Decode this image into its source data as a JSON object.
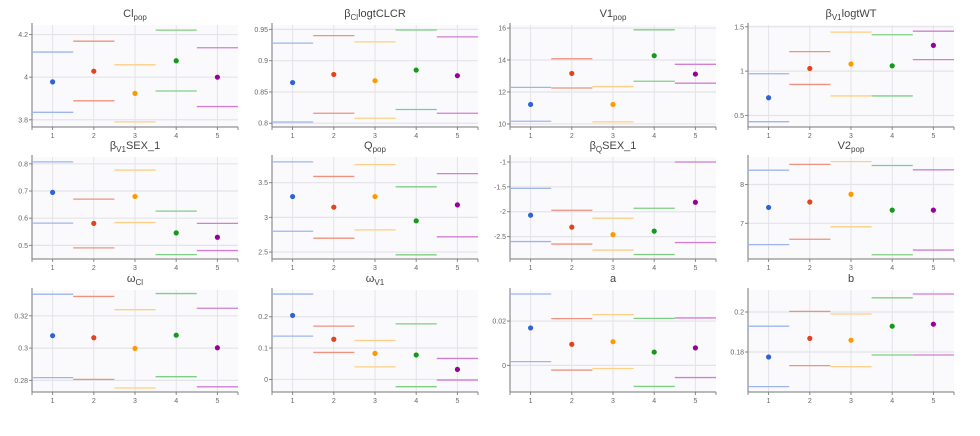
{
  "colors": [
    "#2f62d6",
    "#e2421e",
    "#ff9900",
    "#129a18",
    "#990099"
  ],
  "line_colors": [
    "#9db5ee",
    "#f0917f",
    "#ffcf85",
    "#7fcf82",
    "#d27ed2"
  ],
  "chart_data": [
    {
      "type": "scatter",
      "title": "Cl",
      "title_sub": "pop",
      "title_suffix": "",
      "x": [
        1,
        2,
        3,
        4,
        5
      ],
      "xlim": [
        0.5,
        5.5
      ],
      "ylim": [
        3.766,
        4.245
      ],
      "yticks": [
        3.8,
        4,
        4.2
      ],
      "ytick_labels": [
        "3.8",
        "4",
        "4.2"
      ],
      "values": [
        3.978,
        4.028,
        3.924,
        4.077,
        4.0
      ],
      "upper": [
        4.118,
        4.169,
        4.058,
        4.221,
        4.138
      ],
      "lower": [
        3.835,
        3.889,
        3.79,
        3.935,
        3.862
      ],
      "grid": true
    },
    {
      "type": "scatter",
      "title": "β",
      "title_sub": "Cl",
      "title_suffix": "logtCLCR",
      "x": [
        1,
        2,
        3,
        4,
        5
      ],
      "xlim": [
        0.5,
        5.5
      ],
      "ylim": [
        0.794,
        0.957
      ],
      "yticks": [
        0.8,
        0.85,
        0.9,
        0.95
      ],
      "ytick_labels": [
        "0.8",
        "0.85",
        "0.9",
        "0.95"
      ],
      "values": [
        0.865,
        0.878,
        0.868,
        0.885,
        0.876
      ],
      "upper": [
        0.928,
        0.94,
        0.93,
        0.949,
        0.938
      ],
      "lower": [
        0.802,
        0.816,
        0.808,
        0.822,
        0.816
      ],
      "grid": true
    },
    {
      "type": "scatter",
      "title": "V1",
      "title_sub": "pop",
      "title_suffix": "",
      "x": [
        1,
        2,
        3,
        4,
        5
      ],
      "xlim": [
        0.5,
        5.5
      ],
      "ylim": [
        9.81,
        16.19
      ],
      "yticks": [
        10,
        12,
        14,
        16
      ],
      "ytick_labels": [
        "10",
        "12",
        "14",
        "16"
      ],
      "values": [
        11.22,
        13.16,
        11.22,
        14.27,
        13.12
      ],
      "upper": [
        12.29,
        14.08,
        12.34,
        15.89,
        13.73
      ],
      "lower": [
        10.17,
        12.25,
        10.13,
        12.67,
        12.55
      ],
      "grid": true
    },
    {
      "type": "scatter",
      "title": "β",
      "title_sub": "V1",
      "title_suffix": "logtWT",
      "x": [
        1,
        2,
        3,
        4,
        5
      ],
      "xlim": [
        0.5,
        5.5
      ],
      "ylim": [
        0.37,
        1.52
      ],
      "yticks": [
        0.5,
        1,
        1.5
      ],
      "ytick_labels": [
        "0.5",
        "1",
        "1.5"
      ],
      "values": [
        0.7,
        1.03,
        1.08,
        1.06,
        1.29
      ],
      "upper": [
        0.97,
        1.22,
        1.44,
        1.41,
        1.45
      ],
      "lower": [
        0.43,
        0.85,
        0.72,
        0.72,
        1.13
      ],
      "grid": true
    },
    {
      "type": "scatter",
      "title": "β",
      "title_sub": "V1",
      "title_suffix": "SEX_1",
      "x": [
        1,
        2,
        3,
        4,
        5
      ],
      "xlim": [
        0.5,
        5.5
      ],
      "ylim": [
        0.45,
        0.825
      ],
      "yticks": [
        0.5,
        0.6,
        0.7,
        0.8
      ],
      "ytick_labels": [
        "0.5",
        "0.6",
        "0.7",
        "0.8"
      ],
      "values": [
        0.695,
        0.581,
        0.68,
        0.546,
        0.53
      ],
      "upper": [
        0.807,
        0.67,
        0.777,
        0.626,
        0.581
      ],
      "lower": [
        0.582,
        0.491,
        0.584,
        0.466,
        0.481
      ],
      "grid": true
    },
    {
      "type": "scatter",
      "title": "Q",
      "title_sub": "pop",
      "title_suffix": "",
      "x": [
        1,
        2,
        3,
        4,
        5
      ],
      "xlim": [
        0.5,
        5.5
      ],
      "ylim": [
        2.4,
        3.87
      ],
      "yticks": [
        2.5,
        3,
        3.5
      ],
      "ytick_labels": [
        "2.5",
        "3",
        "3.5"
      ],
      "values": [
        3.3,
        3.147,
        3.3,
        2.95,
        3.18
      ],
      "upper": [
        3.8,
        3.59,
        3.76,
        3.44,
        3.63
      ],
      "lower": [
        2.8,
        2.7,
        2.82,
        2.46,
        2.72
      ],
      "grid": true
    },
    {
      "type": "scatter",
      "title": "β",
      "title_sub": "Q",
      "title_suffix": "SEX_1",
      "x": [
        1,
        2,
        3,
        4,
        5
      ],
      "xlim": [
        0.5,
        5.5
      ],
      "ylim": [
        -2.95,
        -0.9
      ],
      "yticks": [
        -2.5,
        -2,
        -1.5,
        -1
      ],
      "ytick_labels": [
        "-2.5",
        "-2",
        "-1.5",
        "-1"
      ],
      "values": [
        -2.07,
        -2.31,
        -2.46,
        -2.39,
        -1.81
      ],
      "upper": [
        -1.53,
        -1.97,
        -2.13,
        -1.93,
        -1.0
      ],
      "lower": [
        -2.6,
        -2.65,
        -2.77,
        -2.86,
        -2.62
      ],
      "grid": true
    },
    {
      "type": "scatter",
      "title": "V2",
      "title_sub": "pop",
      "title_suffix": "",
      "x": [
        1,
        2,
        3,
        4,
        5
      ],
      "xlim": [
        0.5,
        5.5
      ],
      "ylim": [
        6.08,
        8.71
      ],
      "yticks": [
        7,
        8
      ],
      "ytick_labels": [
        "7",
        "8"
      ],
      "values": [
        7.41,
        7.55,
        7.75,
        7.34,
        7.34
      ],
      "upper": [
        8.37,
        8.52,
        8.59,
        8.49,
        8.38
      ],
      "lower": [
        6.45,
        6.59,
        6.91,
        6.19,
        6.31
      ],
      "grid": true
    },
    {
      "type": "scatter",
      "title": "ω",
      "title_sub": "Cl",
      "title_suffix": "",
      "x": [
        1,
        2,
        3,
        4,
        5
      ],
      "xlim": [
        0.5,
        5.5
      ],
      "ylim": [
        0.2728,
        0.336
      ],
      "yticks": [
        0.28,
        0.3,
        0.32
      ],
      "ytick_labels": [
        "0.28",
        "0.3",
        "0.32"
      ],
      "values": [
        0.3077,
        0.3064,
        0.2998,
        0.308,
        0.3002
      ],
      "upper": [
        0.3334,
        0.332,
        0.3238,
        0.3338,
        0.3247
      ],
      "lower": [
        0.2817,
        0.2806,
        0.2753,
        0.2823,
        0.276
      ],
      "grid": true
    },
    {
      "type": "scatter",
      "title": "ω",
      "title_sub": "V1",
      "title_suffix": "",
      "x": [
        1,
        2,
        3,
        4,
        5
      ],
      "xlim": [
        0.5,
        5.5
      ],
      "ylim": [
        -0.04,
        0.285
      ],
      "yticks": [
        0,
        0.1,
        0.2
      ],
      "ytick_labels": [
        "0",
        "0.1",
        "0.2"
      ],
      "values": [
        0.204,
        0.128,
        0.083,
        0.078,
        0.032
      ],
      "upper": [
        0.272,
        0.17,
        0.124,
        0.177,
        0.067
      ],
      "lower": [
        0.138,
        0.086,
        0.04,
        -0.023,
        -0.002
      ],
      "grid": true
    },
    {
      "type": "scatter",
      "title": "a",
      "title_sub": "",
      "title_suffix": "",
      "x": [
        1,
        2,
        3,
        4,
        5
      ],
      "xlim": [
        0.5,
        5.5
      ],
      "ylim": [
        -0.012,
        0.034
      ],
      "yticks": [
        0,
        0.02
      ],
      "ytick_labels": [
        "0",
        "0.02"
      ],
      "values": [
        0.0169,
        0.0095,
        0.0107,
        0.006,
        0.0079
      ],
      "upper": [
        0.0322,
        0.0211,
        0.0229,
        0.0212,
        0.0214
      ],
      "lower": [
        0.0017,
        -0.0021,
        -0.0014,
        -0.0095,
        -0.0055
      ],
      "grid": true
    },
    {
      "type": "scatter",
      "title": "b",
      "title_sub": "",
      "title_suffix": "",
      "x": [
        1,
        2,
        3,
        4,
        5
      ],
      "xlim": [
        0.5,
        5.5
      ],
      "ylim": [
        0.16,
        0.211
      ],
      "yticks": [
        0.18,
        0.2
      ],
      "ytick_labels": [
        "0.18",
        "0.2"
      ],
      "values": [
        0.1775,
        0.1868,
        0.1859,
        0.1929,
        0.1939
      ],
      "upper": [
        0.1929,
        0.2003,
        0.199,
        0.2071,
        0.209
      ],
      "lower": [
        0.1627,
        0.1732,
        0.1727,
        0.1785,
        0.1785
      ],
      "grid": true
    }
  ]
}
